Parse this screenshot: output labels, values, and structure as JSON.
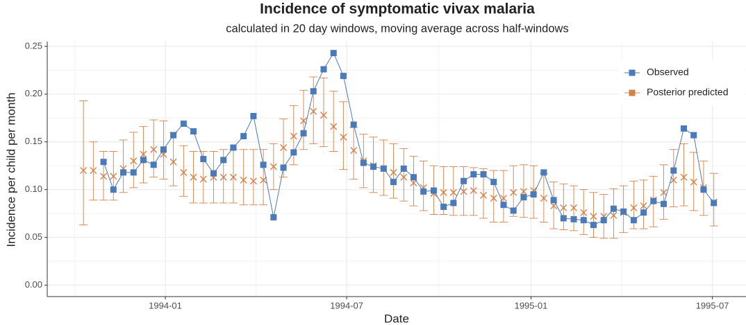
{
  "chart_data": {
    "type": "line",
    "title": "Incidence of symptomatic vivax malaria",
    "subtitle": "calculated in 20 day windows, moving average across half-windows",
    "x_label": "Date",
    "y_label": "Incidence per child per month",
    "x": [
      1993.776,
      1993.803,
      1993.831,
      1993.858,
      1993.885,
      1993.913,
      1993.94,
      1993.968,
      1993.995,
      1994.022,
      1994.05,
      1994.077,
      1994.104,
      1994.132,
      1994.159,
      1994.186,
      1994.214,
      1994.241,
      1994.268,
      1994.296,
      1994.323,
      1994.351,
      1994.378,
      1994.405,
      1994.433,
      1994.46,
      1994.487,
      1994.515,
      1994.542,
      1994.569,
      1994.597,
      1994.624,
      1994.652,
      1994.679,
      1994.706,
      1994.734,
      1994.761,
      1994.788,
      1994.816,
      1994.843,
      1994.87,
      1994.898,
      1994.925,
      1994.952,
      1994.98,
      1995.007,
      1995.035,
      1995.062,
      1995.089,
      1995.117,
      1995.144,
      1995.171,
      1995.199,
      1995.226,
      1995.253,
      1995.281,
      1995.308,
      1995.335,
      1995.363,
      1995.39,
      1995.418,
      1995.445,
      1995.472,
      1995.5
    ],
    "series": [
      {
        "name": "Observed",
        "color": "#4a7ab8",
        "values": [
          null,
          null,
          0.129,
          0.1,
          0.118,
          0.118,
          0.131,
          0.126,
          0.142,
          0.157,
          0.169,
          0.161,
          0.132,
          0.117,
          0.131,
          0.144,
          0.156,
          0.177,
          0.126,
          0.071,
          0.123,
          0.139,
          0.159,
          0.203,
          0.226,
          0.243,
          0.219,
          0.168,
          0.128,
          0.124,
          0.122,
          0.108,
          0.122,
          0.113,
          0.098,
          0.099,
          0.082,
          0.086,
          0.109,
          0.116,
          0.116,
          0.108,
          0.084,
          0.078,
          0.092,
          0.095,
          0.118,
          0.089,
          0.07,
          0.069,
          0.068,
          0.063,
          0.068,
          0.08,
          0.077,
          0.068,
          0.076,
          0.088,
          0.085,
          0.12,
          0.164,
          0.157,
          0.1,
          0.086
        ]
      },
      {
        "name": "Posterior predicted",
        "color": "#d4804a",
        "values": [
          0.12,
          0.12,
          0.114,
          0.114,
          0.122,
          0.13,
          0.137,
          0.142,
          0.137,
          0.129,
          0.118,
          0.113,
          0.111,
          0.113,
          0.113,
          0.113,
          0.11,
          0.109,
          0.11,
          0.124,
          0.144,
          0.156,
          0.172,
          0.182,
          0.178,
          0.166,
          0.155,
          0.141,
          0.13,
          0.125,
          0.122,
          0.118,
          0.113,
          0.107,
          0.102,
          0.096,
          0.097,
          0.097,
          0.098,
          0.099,
          0.094,
          0.091,
          0.091,
          0.097,
          0.098,
          0.099,
          0.091,
          0.083,
          0.081,
          0.081,
          0.076,
          0.072,
          0.072,
          0.073,
          0.076,
          0.081,
          0.083,
          0.089,
          0.097,
          0.11,
          0.113,
          0.108,
          0.102,
          0.087
        ],
        "lower": [
          0.063,
          0.089,
          0.089,
          0.089,
          0.097,
          0.102,
          0.107,
          0.113,
          0.111,
          0.104,
          0.093,
          0.086,
          0.086,
          0.086,
          0.086,
          0.086,
          0.084,
          0.084,
          0.084,
          0.1,
          0.113,
          0.126,
          0.142,
          0.148,
          0.145,
          0.14,
          0.121,
          0.111,
          0.102,
          0.097,
          0.094,
          0.091,
          0.088,
          0.083,
          0.078,
          0.074,
          0.074,
          0.073,
          0.073,
          0.073,
          0.07,
          0.066,
          0.066,
          0.072,
          0.071,
          0.07,
          0.066,
          0.059,
          0.058,
          0.057,
          0.053,
          0.05,
          0.049,
          0.049,
          0.055,
          0.059,
          0.059,
          0.061,
          0.069,
          0.082,
          0.083,
          0.078,
          0.073,
          0.062
        ],
        "upper": [
          0.193,
          0.15,
          0.14,
          0.14,
          0.152,
          0.16,
          0.166,
          0.173,
          0.172,
          0.16,
          0.146,
          0.14,
          0.14,
          0.14,
          0.142,
          0.142,
          0.142,
          0.142,
          0.142,
          0.148,
          0.174,
          0.188,
          0.204,
          0.218,
          0.217,
          0.203,
          0.192,
          0.165,
          0.158,
          0.155,
          0.152,
          0.148,
          0.143,
          0.135,
          0.13,
          0.125,
          0.124,
          0.124,
          0.124,
          0.123,
          0.122,
          0.12,
          0.12,
          0.125,
          0.126,
          0.125,
          0.117,
          0.108,
          0.106,
          0.104,
          0.1,
          0.097,
          0.095,
          0.101,
          0.104,
          0.109,
          0.11,
          0.114,
          0.126,
          0.142,
          0.148,
          0.139,
          0.13,
          0.117
        ]
      }
    ],
    "xlim": [
      1993.677,
      1995.588
    ],
    "xticks": [
      {
        "value": 1994.0,
        "label": "1994-01"
      },
      {
        "value": 1994.496,
        "label": "1994-07"
      },
      {
        "value": 1995.0,
        "label": "1995-01"
      },
      {
        "value": 1995.496,
        "label": "1995-07"
      }
    ],
    "ylim": [
      -0.012,
      0.255
    ],
    "yticks": [
      {
        "value": 0,
        "label": "0.00"
      },
      0.05,
      {
        "value": 0.1,
        "label": "0.10"
      },
      0.15,
      {
        "value": 0.2,
        "label": "0.20"
      },
      0.25
    ],
    "grid": true,
    "legend": "top right"
  }
}
